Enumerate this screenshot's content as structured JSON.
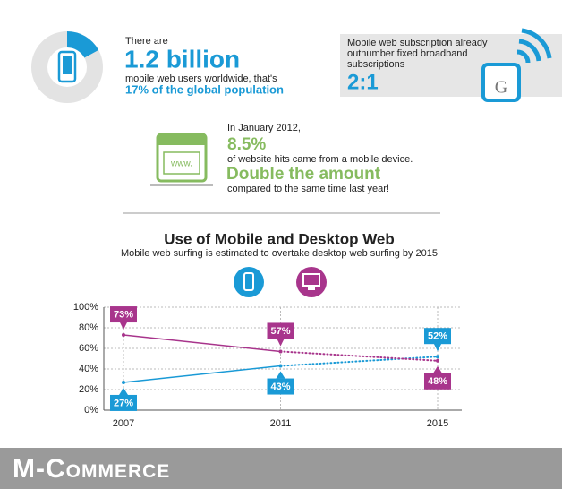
{
  "stats": {
    "users": {
      "intro": "There are",
      "amount": "1.2 billion",
      "line": "mobile web users worldwide, that's",
      "highlight": "17% of the global population",
      "share": 17
    },
    "subscription": {
      "lines": [
        "Mobile web subscription already",
        "outnumber fixed broadband",
        "subscriptions"
      ],
      "ratio": "2:1",
      "icon_letter": "G"
    },
    "hits": {
      "date": "In January 2012,",
      "percent": "8.5%",
      "line": "of website hits came from a mobile device.",
      "headline": "Double the amount",
      "note": "compared to the same time last year!",
      "icon_text": "www."
    }
  },
  "chart_data": {
    "type": "line",
    "title": "Use of Mobile and Desktop Web",
    "subtitle": "Mobile web surfing is estimated to overtake desktop web surfing by 2015",
    "categories": [
      "2007",
      "2011",
      "2015"
    ],
    "series": [
      {
        "color": "#1a9ad6",
        "values": [
          27,
          43,
          52
        ],
        "value_labels": [
          "27%",
          "43%",
          "52%"
        ]
      },
      {
        "color": "#a8358c",
        "values": [
          73,
          57,
          48
        ],
        "value_labels": [
          "73%",
          "57%",
          "48%"
        ]
      }
    ],
    "ylim": [
      0,
      100
    ],
    "yticks": [
      {
        "value": 0,
        "label": "0%"
      },
      {
        "value": 20,
        "label": "20%"
      },
      {
        "value": 40,
        "label": "40%"
      },
      {
        "value": 60,
        "label": "60%"
      },
      {
        "value": 80,
        "label": "80%"
      },
      {
        "value": 100,
        "label": "100%"
      }
    ],
    "grid": true,
    "dashed_after": "2011"
  },
  "footer": {
    "title": "M-Commerce"
  }
}
